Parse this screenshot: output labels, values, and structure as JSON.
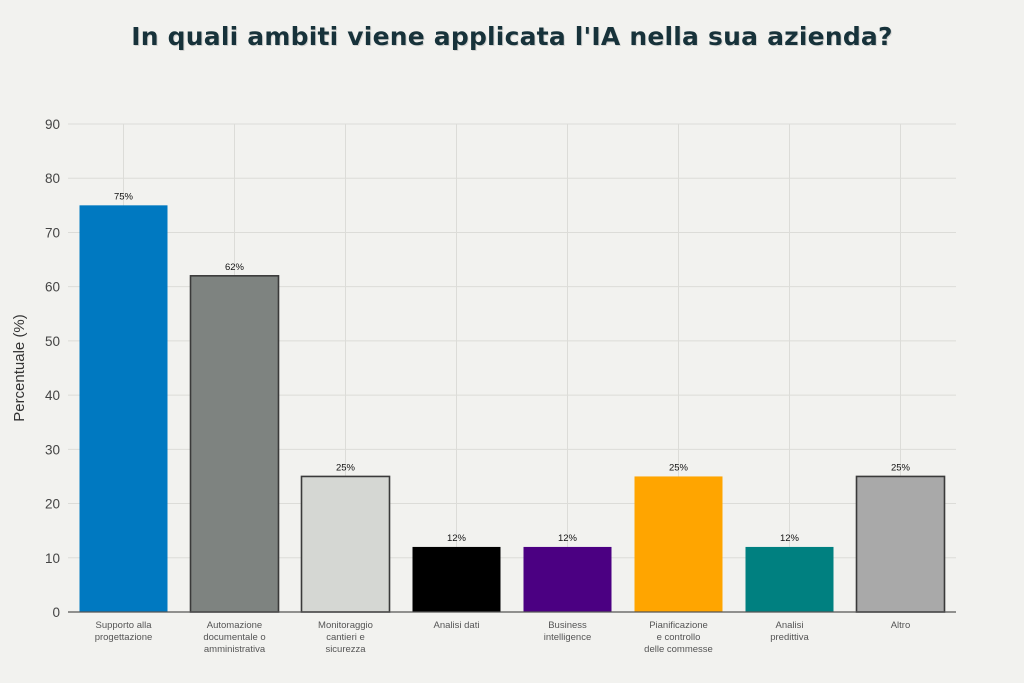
{
  "chart_data": {
    "type": "bar",
    "title": "In quali ambiti viene applicata l'IA nella sua azienda?",
    "xlabel": "",
    "ylabel": "Percentuale (%)",
    "ylim": [
      0,
      90
    ],
    "yticks": [
      0,
      10,
      20,
      30,
      40,
      50,
      60,
      70,
      80,
      90
    ],
    "grid": true,
    "categories": [
      [
        "Supporto alla",
        "progettazione"
      ],
      [
        "Automazione",
        "documentale o",
        "amministrativa"
      ],
      [
        "Monitoraggio",
        "cantieri e",
        "sicurezza"
      ],
      [
        "Analisi dati"
      ],
      [
        "Business",
        "intelligence"
      ],
      [
        "Pianificazione",
        "e controllo",
        "delle commesse"
      ],
      [
        "Analisi",
        "predittiva"
      ],
      [
        "Altro"
      ]
    ],
    "values": [
      75,
      62,
      25,
      12,
      12,
      25,
      12,
      25
    ],
    "data_labels": [
      "75%",
      "62%",
      "25%",
      "12%",
      "12%",
      "25%",
      "12%",
      "25%"
    ],
    "colors": [
      "#0079c1",
      "#7e8380",
      "#d5d7d3",
      "#000000",
      "#4b0082",
      "#ffa500",
      "#008080",
      "#a9a9a9"
    ],
    "outlined": [
      false,
      true,
      true,
      false,
      false,
      false,
      false,
      true
    ]
  }
}
